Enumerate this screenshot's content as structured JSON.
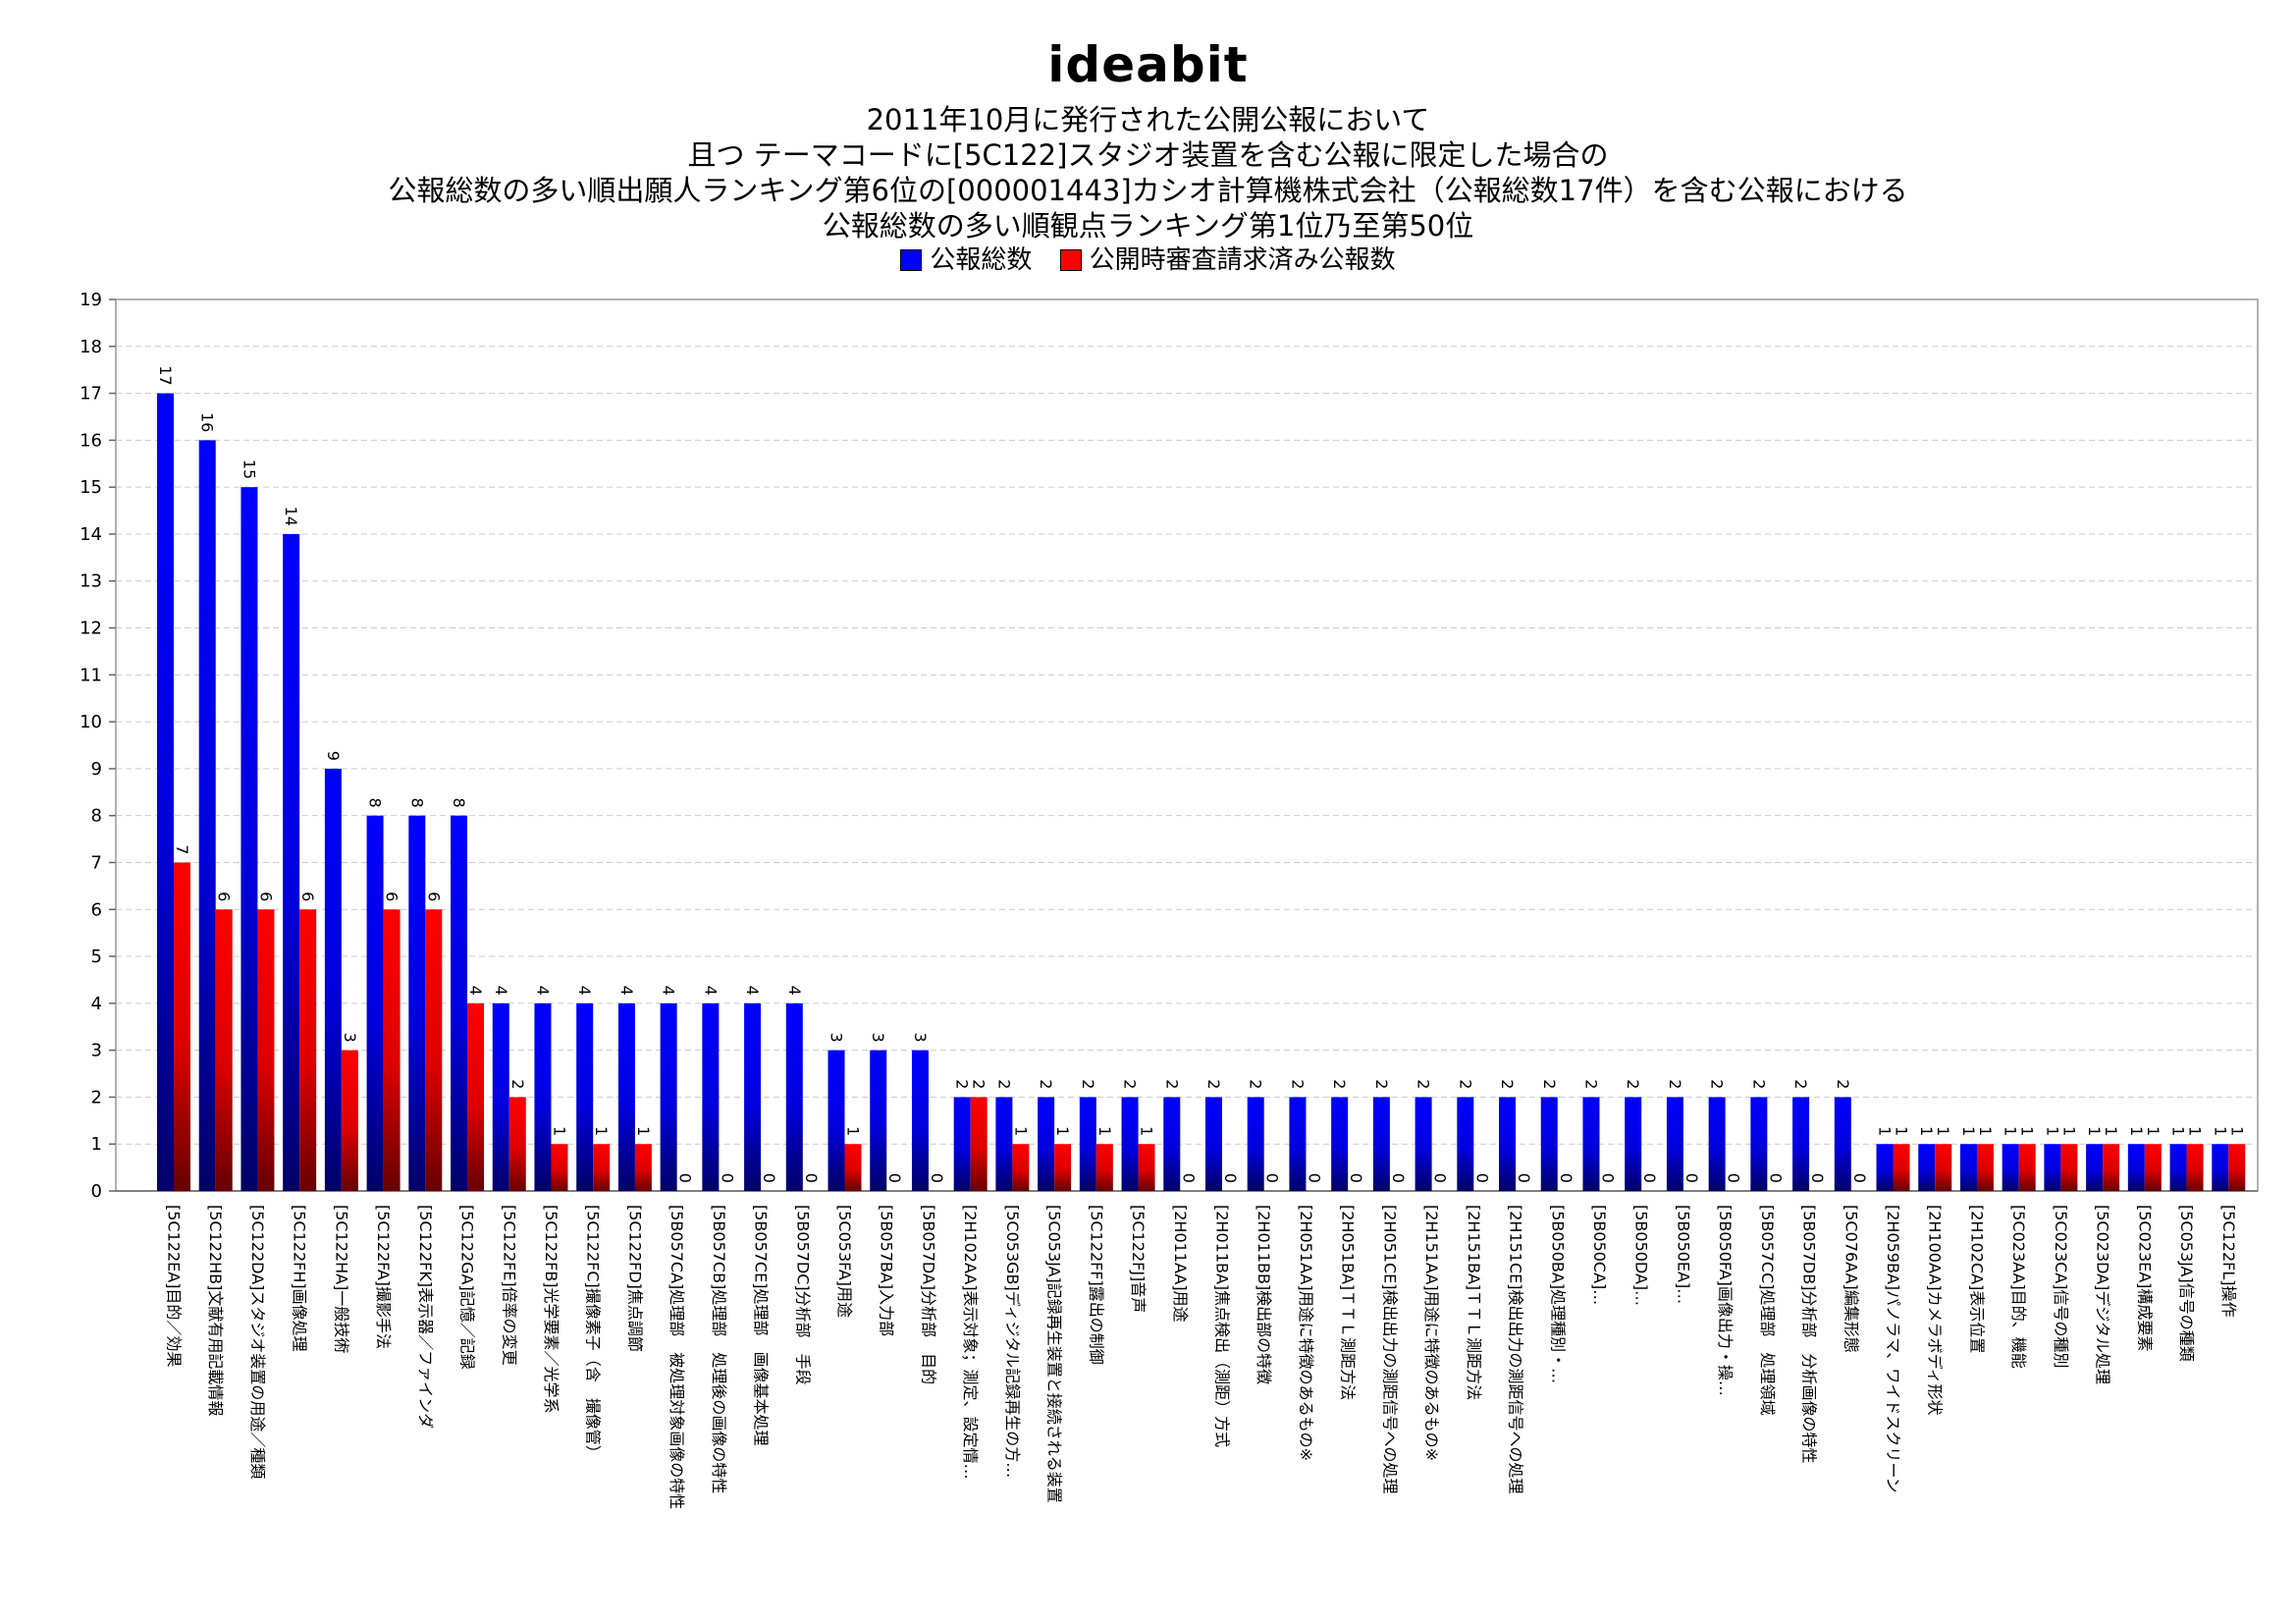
{
  "brand": "ideabit",
  "title_lines": [
    "2011年10月に発行された公開公報において",
    "且つ テーマコードに[5C122]スタジオ装置を含む公報に限定した場合の",
    "公報総数の多い順出願人ランキング第6位の[000001443]カシオ計算機株式会社（公報総数17件）を含む公報における",
    "公報総数の多い順観点ランキング第1位乃至第50位"
  ],
  "colors": {
    "series_blue": "#0000ff",
    "series_red": "#ff0000",
    "axis": "#999999",
    "grid": "#cccccc"
  },
  "chart_data": {
    "type": "bar",
    "ylim": [
      0,
      19
    ],
    "yticks": [
      0,
      1,
      2,
      3,
      4,
      5,
      6,
      7,
      8,
      9,
      10,
      11,
      12,
      13,
      14,
      15,
      16,
      17,
      18,
      19
    ],
    "grid": true,
    "legend_position": "top-center",
    "categories": [
      "[5C122EA]目的／効果",
      "[5C122HB]文献有用記載情報",
      "[5C122DA]スタジオ装置の用途／種類",
      "[5C122FH]画像処理",
      "[5C122HA]一般技術",
      "[5C122FA]撮影手法",
      "[5C122FK]表示器／ファインダ",
      "[5C122GA]記憶／記録",
      "[5C122FE]倍率の変更",
      "[5C122FB]光学要素／光学系",
      "[5C122FC]撮像素子（含　撮像管）",
      "[5C122FD]焦点調節",
      "[5B057CA]処理部　被処理対象画像の特性",
      "[5B057CB]処理部　処理後の画像の特性",
      "[5B057CE]処理部　画像基本処理",
      "[5B057DC]分析部　手段",
      "[5C053FA]用途",
      "[5B057BA]入力部",
      "[5B057DA]分析部　目的",
      "[2H102AA]表示対象；測定、設定情…",
      "[5C053GB]ディジタル記録再生の方…",
      "[5C053JA]記録再生装置と接続される装置",
      "[5C122FF]露出の制御",
      "[5C122FJ]音声",
      "[2H011AA]用途",
      "[2H011BA]焦点検出（測距）方式",
      "[2H011BB]検出部の特徴",
      "[2H051AA]用途に特徴のあるもの※",
      "[2H051BA]ＴＴＬ測距方法",
      "[2H051CE]検出出力の測距信号への処理",
      "[2H151AA]用途に特徴のあるもの※",
      "[2H151BA]ＴＴＬ測距方法",
      "[2H151CE]検出出力の測距信号への処理",
      "[5B050BA]処理種別・…",
      "[5B050CA]…",
      "[5B050DA]…",
      "[5B050EA]…",
      "[5B050FA]画像出力・操…",
      "[5B057CC]処理部　処理領域",
      "[5B057DB]分析部　分析画像の特性",
      "[5C076AA]編集形態",
      "[2H059BA]パノラマ、ワイドスクリーン",
      "[2H100AA]カメラボディ形状",
      "[2H102CA]表示位置",
      "[5C023AA]目的、機能",
      "[5C023CA]信号の種別",
      "[5C023DA]デジタル処理",
      "[5C023EA]構成要素",
      "[5C053JA]信号の種類",
      "[5C122FL]操作"
    ],
    "series": [
      {
        "name": "公報総数",
        "values": [
          17,
          16,
          15,
          14,
          9,
          8,
          8,
          8,
          4,
          4,
          4,
          4,
          4,
          4,
          4,
          4,
          3,
          3,
          3,
          2,
          2,
          2,
          2,
          2,
          2,
          2,
          2,
          2,
          2,
          2,
          2,
          2,
          2,
          2,
          2,
          2,
          2,
          2,
          2,
          2,
          2,
          1,
          1,
          1,
          1,
          1,
          1,
          1,
          1,
          1
        ]
      },
      {
        "name": "公開時審査請求済み公報数",
        "values": [
          7,
          6,
          6,
          6,
          3,
          6,
          6,
          4,
          2,
          1,
          1,
          1,
          0,
          0,
          0,
          0,
          1,
          0,
          0,
          2,
          1,
          1,
          1,
          1,
          0,
          0,
          0,
          0,
          0,
          0,
          0,
          0,
          0,
          0,
          0,
          0,
          0,
          0,
          0,
          0,
          0,
          1,
          1,
          1,
          1,
          1,
          1,
          1,
          1,
          1
        ]
      }
    ]
  }
}
